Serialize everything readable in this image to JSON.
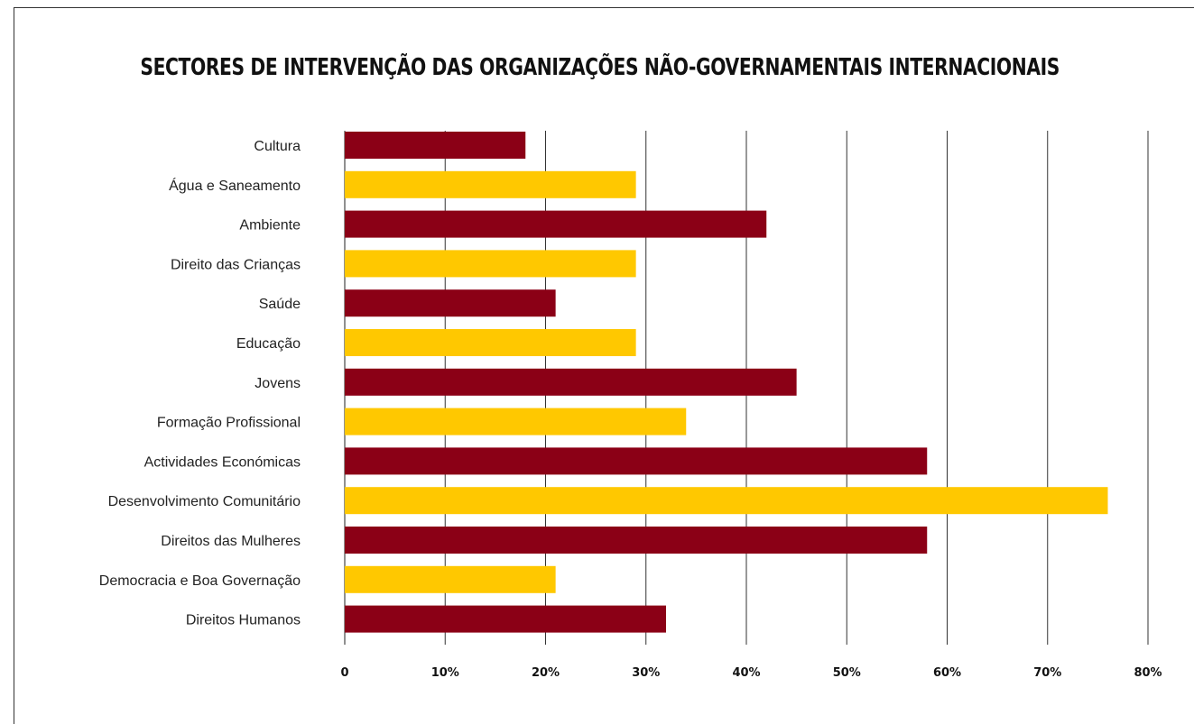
{
  "chart_data": {
    "type": "bar",
    "orientation": "horizontal",
    "title": "SECTORES DE INTERVENÇÃO DAS ORGANIZAÇÕES NÃO-GOVERNAMENTAIS INTERNACIONAIS",
    "categories": [
      "Cultura",
      "Água e Saneamento",
      "Ambiente",
      "Direito das Crianças",
      "Saúde",
      "Educação",
      "Jovens",
      "Formação Profissional",
      "Actividades Económicas",
      "Desenvolvimento Comunitário",
      "Direitos das Mulheres",
      "Democracia e Boa Governação",
      "Direitos Humanos"
    ],
    "values": [
      18,
      29,
      42,
      29,
      21,
      29,
      45,
      34,
      58,
      76,
      58,
      21,
      32
    ],
    "unit": "%",
    "xlim": [
      0,
      80
    ],
    "xticks": [
      0,
      10,
      20,
      30,
      40,
      50,
      60,
      70,
      80
    ],
    "xtick_labels": [
      "0",
      "10%",
      "20%",
      "30%",
      "40%",
      "50%",
      "60%",
      "70%",
      "80%"
    ],
    "grid": "vertical",
    "legend": "none",
    "colors": [
      "#8b0016",
      "#ffc800"
    ]
  }
}
